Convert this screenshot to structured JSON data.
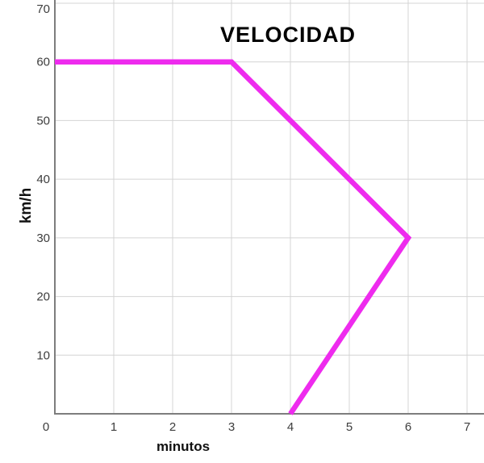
{
  "chart_data": {
    "type": "line",
    "title": "VELOCIDAD",
    "xlabel": "minutos",
    "ylabel": "km/h",
    "x_ticks": [
      0,
      1,
      2,
      3,
      4,
      5,
      6,
      7
    ],
    "y_ticks": [
      0,
      10,
      20,
      30,
      40,
      50,
      60,
      70
    ],
    "xlim": [
      0,
      7.3
    ],
    "ylim": [
      0,
      70
    ],
    "grid": true,
    "legend": "none",
    "series": [
      {
        "name": "velocidad",
        "color": "#EE2BEE",
        "points": [
          [
            0,
            60
          ],
          [
            3,
            60
          ],
          [
            6,
            30
          ],
          [
            4,
            0
          ]
        ]
      }
    ],
    "colors": {
      "line": "#EE2BEE",
      "grid": "#d4d4d4",
      "axis": "#7d7d7d",
      "tick_text": "#3d3d3d",
      "title_text": "#000000",
      "background": "#ffffff"
    }
  }
}
